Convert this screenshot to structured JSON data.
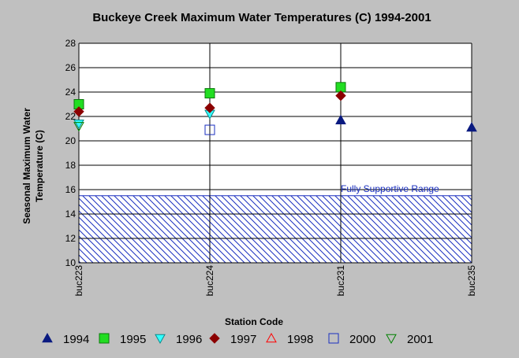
{
  "chart_data": {
    "type": "scatter",
    "title": "Buckeye Creek Maximum Water Temperatures (C) 1994-2001",
    "xlabel": "Station Code",
    "ylabel_lines": [
      "Seasonal Maximum Water",
      "Temperature  (C)"
    ],
    "categories": [
      "buc223",
      "buc224",
      "buc231",
      "buc235"
    ],
    "ylim": [
      10,
      28
    ],
    "yticks": [
      10,
      12,
      14,
      16,
      18,
      20,
      22,
      24,
      26,
      28
    ],
    "grid": true,
    "legend_position": "bottom",
    "band": {
      "label": "Fully Supportive Range",
      "ymin": 10,
      "ymax": 15.5,
      "color": "#1a2fbf"
    },
    "series": [
      {
        "name": "1994",
        "marker": "triangle-up",
        "color": "#0a1a80",
        "fill": "#0a1a80",
        "values": [
          null,
          null,
          21.7,
          21.1
        ]
      },
      {
        "name": "1995",
        "marker": "square",
        "color": "#0b7a0b",
        "fill": "#22dd22",
        "values": [
          23.0,
          23.9,
          24.4,
          null
        ]
      },
      {
        "name": "1996",
        "marker": "triangle-down",
        "color": "#0b8a8a",
        "fill": "#33ffff",
        "values": [
          21.4,
          22.2,
          null,
          null
        ]
      },
      {
        "name": "1997",
        "marker": "diamond",
        "color": "#8b0000",
        "fill": "#8b0000",
        "values": [
          22.4,
          22.7,
          23.7,
          null
        ]
      },
      {
        "name": "1998",
        "marker": "triangle-up-open",
        "color": "#ff0000",
        "fill": "none",
        "values": [
          null,
          null,
          null,
          null
        ]
      },
      {
        "name": "2000",
        "marker": "square-open",
        "color": "#1a2fbf",
        "fill": "none",
        "values": [
          null,
          20.9,
          null,
          null
        ]
      },
      {
        "name": "2001",
        "marker": "triangle-down-open",
        "color": "#008000",
        "fill": "none",
        "values": [
          21.2,
          null,
          null,
          null
        ]
      }
    ]
  }
}
